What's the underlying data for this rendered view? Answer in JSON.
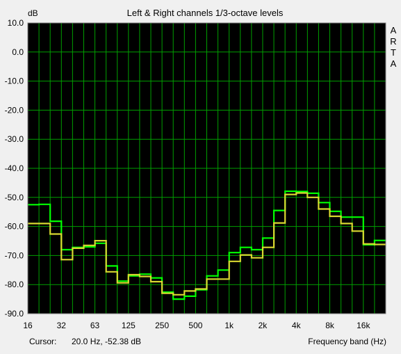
{
  "chart_data": {
    "type": "line",
    "step": true,
    "title": "Left & Right channels 1/3-octave levels",
    "ylabel": "dB",
    "xlabel": "Frequency band (Hz)",
    "brand": "ARTA",
    "ylim": [
      -90,
      10
    ],
    "yticks": [
      "10.0",
      "0.0",
      "-10.0",
      "-20.0",
      "-30.0",
      "-40.0",
      "-50.0",
      "-60.0",
      "-70.0",
      "-80.0",
      "-90.0"
    ],
    "xticks": [
      "16",
      "32",
      "63",
      "125",
      "250",
      "500",
      "1k",
      "2k",
      "4k",
      "8k",
      "16k"
    ],
    "bands": [
      "16",
      "20",
      "25",
      "31.5",
      "40",
      "50",
      "63",
      "80",
      "100",
      "125",
      "160",
      "200",
      "250",
      "315",
      "400",
      "500",
      "630",
      "800",
      "1k",
      "1.25k",
      "1.6k",
      "2k",
      "2.5k",
      "3.15k",
      "4k",
      "5k",
      "6.3k",
      "8k",
      "10k",
      "12.5k",
      "16k",
      "20k"
    ],
    "grid": true,
    "background_color": "#000000",
    "grid_color": "#00a000",
    "series": [
      {
        "color": "#00ff00",
        "values": [
          -52.5,
          -52.4,
          -58.2,
          -68.0,
          -67.2,
          -67.0,
          -65.8,
          -73.6,
          -78.8,
          -77.0,
          -76.4,
          -77.7,
          -82.6,
          -85.0,
          -84.0,
          -81.8,
          -77.0,
          -75.0,
          -69.0,
          -67.2,
          -68.0,
          -64.0,
          -54.5,
          -47.9,
          -48.0,
          -48.6,
          -51.8,
          -54.8,
          -56.8,
          -56.8,
          -66.3,
          -64.8
        ]
      },
      {
        "color": "#d8d830",
        "values": [
          -59.0,
          -59.0,
          -62.6,
          -71.4,
          -67.5,
          -66.5,
          -64.9,
          -75.6,
          -79.4,
          -76.6,
          -77.2,
          -79.0,
          -83.0,
          -83.5,
          -82.2,
          -81.5,
          -78.1,
          -78.1,
          -72.0,
          -69.8,
          -70.8,
          -67.2,
          -58.8,
          -49.0,
          -48.5,
          -50.0,
          -54.0,
          -56.5,
          -59.0,
          -61.6,
          -66.0,
          -66.2
        ]
      }
    ]
  },
  "status": {
    "cursor_label": "Cursor:",
    "cursor_value": "20.0 Hz, -52.38 dB"
  }
}
